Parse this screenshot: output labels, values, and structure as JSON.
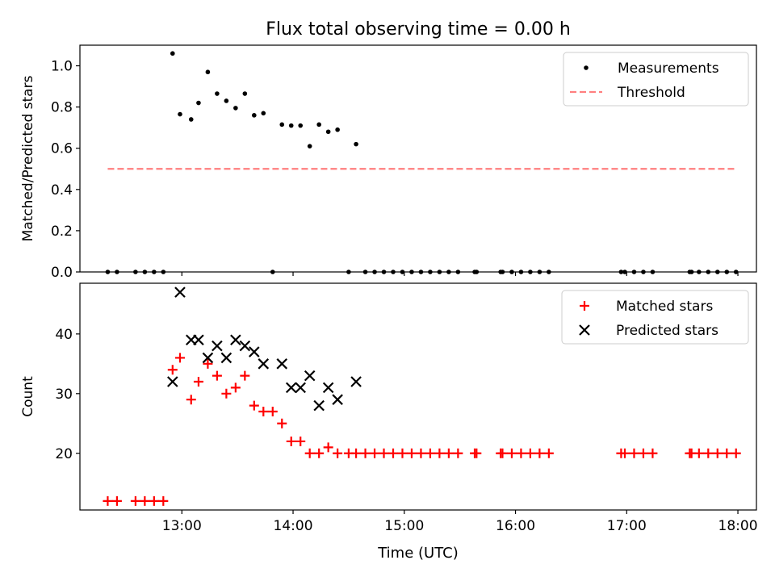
{
  "chart_data": [
    {
      "type": "scatter",
      "title": "Flux total observing time = 0.00 h",
      "xlabel": "",
      "ylabel": "Matched/Predicted stars",
      "ylim": [
        0,
        1.1
      ],
      "xlim": [
        "12:05",
        "18:10"
      ],
      "yticks": [
        "0.0",
        "0.2",
        "0.4",
        "0.6",
        "0.8",
        "1.0"
      ],
      "grid": false,
      "legend_position": "top-right",
      "series": [
        {
          "name": "Measurements",
          "marker": "dot",
          "color": "#000000",
          "points": [
            [
              "12:20",
              0
            ],
            [
              "12:25",
              0
            ],
            [
              "12:35",
              0
            ],
            [
              "12:40",
              0
            ],
            [
              "12:45",
              0
            ],
            [
              "12:50",
              0
            ],
            [
              "12:55",
              1.06
            ],
            [
              "12:59",
              0.765
            ],
            [
              "13:05",
              0.74
            ],
            [
              "13:09",
              0.82
            ],
            [
              "13:14",
              0.97
            ],
            [
              "13:19",
              0.865
            ],
            [
              "13:24",
              0.83
            ],
            [
              "13:29",
              0.795
            ],
            [
              "13:34",
              0.865
            ],
            [
              "13:39",
              0.76
            ],
            [
              "13:44",
              0.77
            ],
            [
              "13:49",
              0
            ],
            [
              "13:54",
              0.715
            ],
            [
              "13:59",
              0.71
            ],
            [
              "14:04",
              0.71
            ],
            [
              "14:09",
              0.61
            ],
            [
              "14:14",
              0.715
            ],
            [
              "14:19",
              0.68
            ],
            [
              "14:24",
              0.69
            ],
            [
              "14:30",
              0
            ],
            [
              "14:34",
              0.62
            ],
            [
              "14:39",
              0
            ],
            [
              "14:44",
              0
            ],
            [
              "14:49",
              0
            ],
            [
              "14:54",
              0
            ],
            [
              "14:59",
              0
            ],
            [
              "15:04",
              0
            ],
            [
              "15:09",
              0
            ],
            [
              "15:14",
              0
            ],
            [
              "15:19",
              0
            ],
            [
              "15:24",
              0
            ],
            [
              "15:29",
              0
            ],
            [
              "15:38",
              0
            ],
            [
              "15:39",
              0
            ],
            [
              "15:52",
              0
            ],
            [
              "15:53",
              0
            ],
            [
              "15:58",
              0
            ],
            [
              "16:03",
              0
            ],
            [
              "16:08",
              0
            ],
            [
              "16:13",
              0
            ],
            [
              "16:18",
              0
            ],
            [
              "16:57",
              0
            ],
            [
              "16:59",
              0
            ],
            [
              "17:04",
              0
            ],
            [
              "17:09",
              0
            ],
            [
              "17:14",
              0
            ],
            [
              "17:34",
              0
            ],
            [
              "17:35",
              0
            ],
            [
              "17:39",
              0
            ],
            [
              "17:44",
              0
            ],
            [
              "17:49",
              0
            ],
            [
              "17:54",
              0
            ],
            [
              "17:59",
              0
            ]
          ]
        },
        {
          "name": "Threshold",
          "marker": "dashed-line",
          "color": "#ff7f7f",
          "points": [
            [
              "12:20",
              0.5
            ],
            [
              "17:59",
              0.5
            ]
          ]
        }
      ]
    },
    {
      "type": "scatter",
      "xlabel": "Time (UTC)",
      "ylabel": "Count",
      "ylim": [
        10.5,
        48.5
      ],
      "xlim": [
        "12:05",
        "18:10"
      ],
      "xticks": [
        "13:00",
        "14:00",
        "15:00",
        "16:00",
        "17:00",
        "18:00"
      ],
      "yticks": [
        "20",
        "30",
        "40"
      ],
      "grid": false,
      "legend_position": "top-right",
      "series": [
        {
          "name": "Matched stars",
          "marker": "plus",
          "color": "#ff0000",
          "points": [
            [
              "12:20",
              12
            ],
            [
              "12:25",
              12
            ],
            [
              "12:35",
              12
            ],
            [
              "12:40",
              12
            ],
            [
              "12:45",
              12
            ],
            [
              "12:50",
              12
            ],
            [
              "12:55",
              34
            ],
            [
              "12:59",
              36
            ],
            [
              "13:05",
              29
            ],
            [
              "13:09",
              32
            ],
            [
              "13:14",
              35
            ],
            [
              "13:19",
              33
            ],
            [
              "13:24",
              30
            ],
            [
              "13:29",
              31
            ],
            [
              "13:34",
              33
            ],
            [
              "13:39",
              28
            ],
            [
              "13:44",
              27
            ],
            [
              "13:49",
              27
            ],
            [
              "13:54",
              25
            ],
            [
              "13:59",
              22
            ],
            [
              "14:04",
              22
            ],
            [
              "14:09",
              20
            ],
            [
              "14:14",
              20
            ],
            [
              "14:19",
              21
            ],
            [
              "14:24",
              20
            ],
            [
              "14:30",
              20
            ],
            [
              "14:34",
              20
            ],
            [
              "14:39",
              20
            ],
            [
              "14:44",
              20
            ],
            [
              "14:49",
              20
            ],
            [
              "14:54",
              20
            ],
            [
              "14:59",
              20
            ],
            [
              "15:04",
              20
            ],
            [
              "15:09",
              20
            ],
            [
              "15:14",
              20
            ],
            [
              "15:19",
              20
            ],
            [
              "15:24",
              20
            ],
            [
              "15:29",
              20
            ],
            [
              "15:38",
              20
            ],
            [
              "15:39",
              20
            ],
            [
              "15:52",
              20
            ],
            [
              "15:53",
              20
            ],
            [
              "15:58",
              20
            ],
            [
              "16:03",
              20
            ],
            [
              "16:08",
              20
            ],
            [
              "16:13",
              20
            ],
            [
              "16:18",
              20
            ],
            [
              "16:57",
              20
            ],
            [
              "16:59",
              20
            ],
            [
              "17:04",
              20
            ],
            [
              "17:09",
              20
            ],
            [
              "17:14",
              20
            ],
            [
              "17:34",
              20
            ],
            [
              "17:35",
              20
            ],
            [
              "17:39",
              20
            ],
            [
              "17:44",
              20
            ],
            [
              "17:49",
              20
            ],
            [
              "17:54",
              20
            ],
            [
              "17:59",
              20
            ]
          ]
        },
        {
          "name": "Predicted stars",
          "marker": "x",
          "color": "#000000",
          "points": [
            [
              "12:55",
              32
            ],
            [
              "12:59",
              47
            ],
            [
              "13:05",
              39
            ],
            [
              "13:09",
              39
            ],
            [
              "13:14",
              36
            ],
            [
              "13:19",
              38
            ],
            [
              "13:24",
              36
            ],
            [
              "13:29",
              39
            ],
            [
              "13:34",
              38
            ],
            [
              "13:39",
              37
            ],
            [
              "13:44",
              35
            ],
            [
              "13:54",
              35
            ],
            [
              "13:59",
              31
            ],
            [
              "14:04",
              31
            ],
            [
              "14:09",
              33
            ],
            [
              "14:14",
              28
            ],
            [
              "14:19",
              31
            ],
            [
              "14:24",
              29
            ],
            [
              "14:34",
              32
            ]
          ]
        }
      ]
    }
  ]
}
